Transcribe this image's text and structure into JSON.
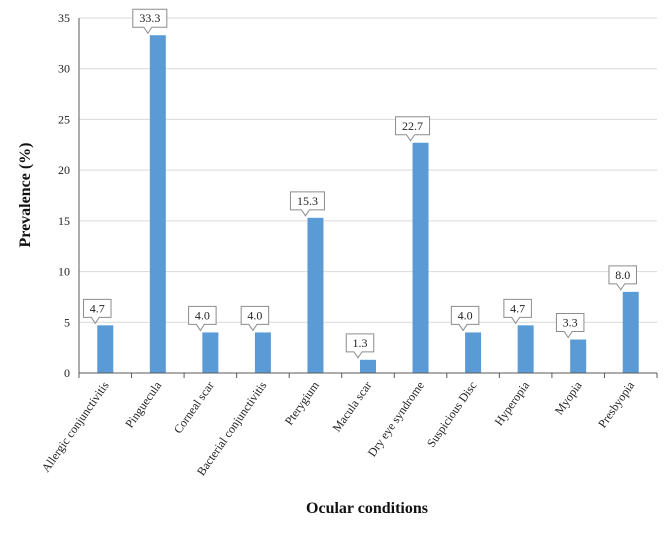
{
  "chart_data": {
    "type": "bar",
    "title": "",
    "xlabel": "Ocular conditions",
    "ylabel": "Prevalence (%)",
    "ylim": [
      0,
      35
    ],
    "yticks": [
      0,
      5,
      10,
      15,
      20,
      25,
      30,
      35
    ],
    "grid": "horizontal",
    "legend": "none",
    "categories": [
      "Allergic conjunctivitis",
      "Pinguecula",
      "Corneal scar",
      "Bacterial conjunctivitis",
      "Pterygium",
      "Macula scar",
      "Dry eye syndrome",
      "Suspicious Disc",
      "Hyperopia",
      "Myopia",
      "Presbyopia"
    ],
    "values": [
      4.7,
      33.3,
      4.0,
      4.0,
      15.3,
      1.3,
      22.7,
      4.0,
      4.7,
      3.3,
      8.0
    ],
    "data_labels": [
      "4.7",
      "33.3",
      "4.0",
      "4.0",
      "15.3",
      "1.3",
      "22.7",
      "4.0",
      "4.7",
      "3.3",
      "8.0"
    ],
    "colors": {
      "bar": "#5b9bd5",
      "gridline": "#d9d9d9",
      "axis": "#595959",
      "label_border": "#8c8c8c"
    }
  }
}
